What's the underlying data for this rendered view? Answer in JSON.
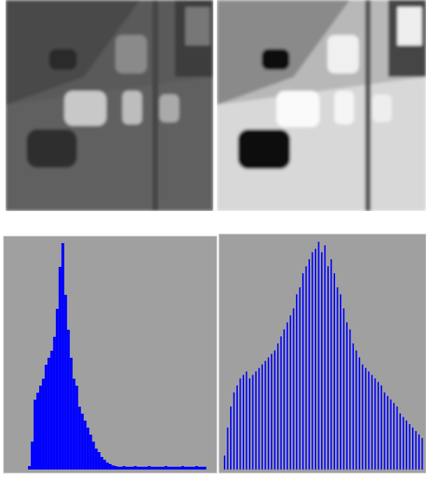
{
  "chart_data": [
    {
      "type": "bar",
      "color": "#0000ff",
      "background": "#a0a0a0",
      "values": [
        5,
        40,
        100,
        110,
        120,
        130,
        150,
        160,
        170,
        190,
        230,
        290,
        324,
        250,
        200,
        160,
        130,
        120,
        90,
        80,
        70,
        60,
        50,
        40,
        30,
        25,
        18,
        14,
        10,
        8,
        6,
        5,
        4,
        4,
        5,
        4,
        4,
        4,
        5,
        4,
        4,
        4,
        4,
        5,
        4,
        4,
        4,
        4,
        4,
        5,
        4,
        4,
        4,
        4,
        4,
        5,
        4,
        4,
        4,
        4,
        5,
        4,
        4,
        4
      ]
    },
    {
      "type": "bar",
      "color": "#0000ff",
      "background": "#a0a0a0",
      "values": [
        20,
        60,
        90,
        110,
        120,
        130,
        135,
        140,
        130,
        135,
        140,
        145,
        150,
        155,
        160,
        165,
        170,
        180,
        190,
        200,
        210,
        220,
        230,
        250,
        260,
        280,
        290,
        300,
        310,
        315,
        325,
        310,
        320,
        290,
        300,
        280,
        260,
        250,
        230,
        210,
        200,
        180,
        170,
        160,
        150,
        145,
        140,
        135,
        130,
        125,
        120,
        110,
        105,
        100,
        95,
        90,
        80,
        75,
        70,
        65,
        60,
        55,
        50,
        45
      ]
    }
  ]
}
